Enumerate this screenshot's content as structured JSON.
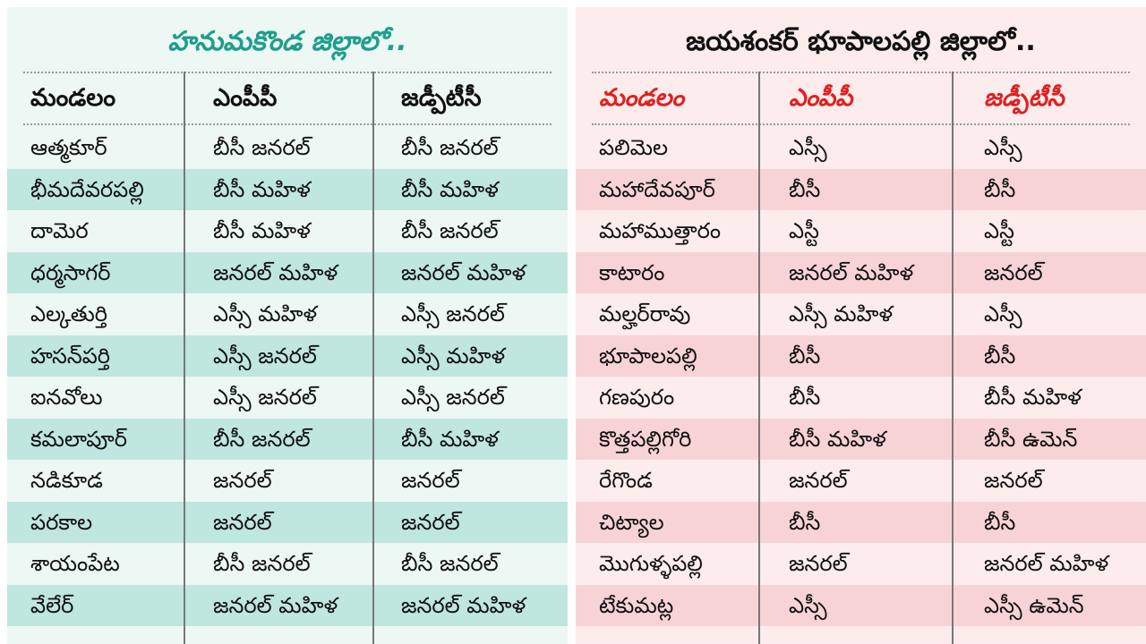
{
  "left": {
    "title": "హనుమకొండ జిల్లాలో..",
    "headers": [
      "మండలం",
      "ఎంపీపీ",
      "జడ్పీటీసీ"
    ],
    "rows": [
      [
        "ఆత్మకూర్",
        "బీసీ జనరల్",
        "బీసీ జనరల్"
      ],
      [
        "భీమదేవరపల్లి",
        "బీసీ మహిళ",
        "బీసీ మహిళ"
      ],
      [
        "దామెర",
        "బీసీ మహిళ",
        "బీసీ జనరల్"
      ],
      [
        "ధర్మసాగర్",
        "జనరల్ మహిళ",
        "జనరల్ మహిళ"
      ],
      [
        "ఎల్కతుర్తి",
        "ఎస్సీ మహిళ",
        "ఎస్సీ జనరల్"
      ],
      [
        "హసన్‌పర్తి",
        "ఎస్సీ జనరల్",
        "ఎస్సీ మహిళ"
      ],
      [
        "ఐనవోలు",
        "ఎస్సీ జనరల్",
        "ఎస్సీ జనరల్"
      ],
      [
        "కమలాపూర్",
        "బీసీ జనరల్",
        "బీసీ మహిళ"
      ],
      [
        "నడికూడ",
        "జనరల్",
        "జనరల్"
      ],
      [
        "పరకాల",
        "జనరల్",
        "జనరల్"
      ],
      [
        "శాయంపేట",
        "బీసీ జనరల్",
        "బీసీ జనరల్"
      ],
      [
        "వేలేర్",
        "జనరల్ మహిళ",
        "జనరల్ మహిళ"
      ]
    ]
  },
  "right": {
    "title": "జయశంకర్ భూపాలపల్లి జిల్లాలో..",
    "headers": [
      "మండలం",
      "ఎంపీపీ",
      "జడ్పీటీసీ"
    ],
    "rows": [
      [
        "పలిమెల",
        "ఎస్సీ",
        "ఎస్సీ"
      ],
      [
        "మహాదేవపూర్",
        "బీసీ",
        "బీసీ"
      ],
      [
        "మహాముత్తారం",
        "ఎస్టీ",
        "ఎస్టీ"
      ],
      [
        "కాటారం",
        "జనరల్ మహిళ",
        "జనరల్"
      ],
      [
        "మల్హర్‌రావు",
        "ఎస్సీ మహిళ",
        "ఎస్సీ"
      ],
      [
        "భూపాలపల్లి",
        "బీసీ",
        "బీసీ"
      ],
      [
        "గణపురం",
        "బీసీ",
        "బీసీ మహిళ"
      ],
      [
        "కొత్తపల్లిగోరి",
        "బీసీ మహిళ",
        "బీసీ ఉమెన్"
      ],
      [
        "రేగొండ",
        "జనరల్",
        "జనరల్"
      ],
      [
        "చిట్యాల",
        "బీసీ",
        "బీసీ"
      ],
      [
        "మొగుళ్ళపల్లి",
        "జనరల్",
        "జనరల్ మహిళ"
      ],
      [
        "టేకుమట్ల",
        "ఎస్సీ",
        "ఎస్సీ ఉమెన్"
      ]
    ]
  }
}
